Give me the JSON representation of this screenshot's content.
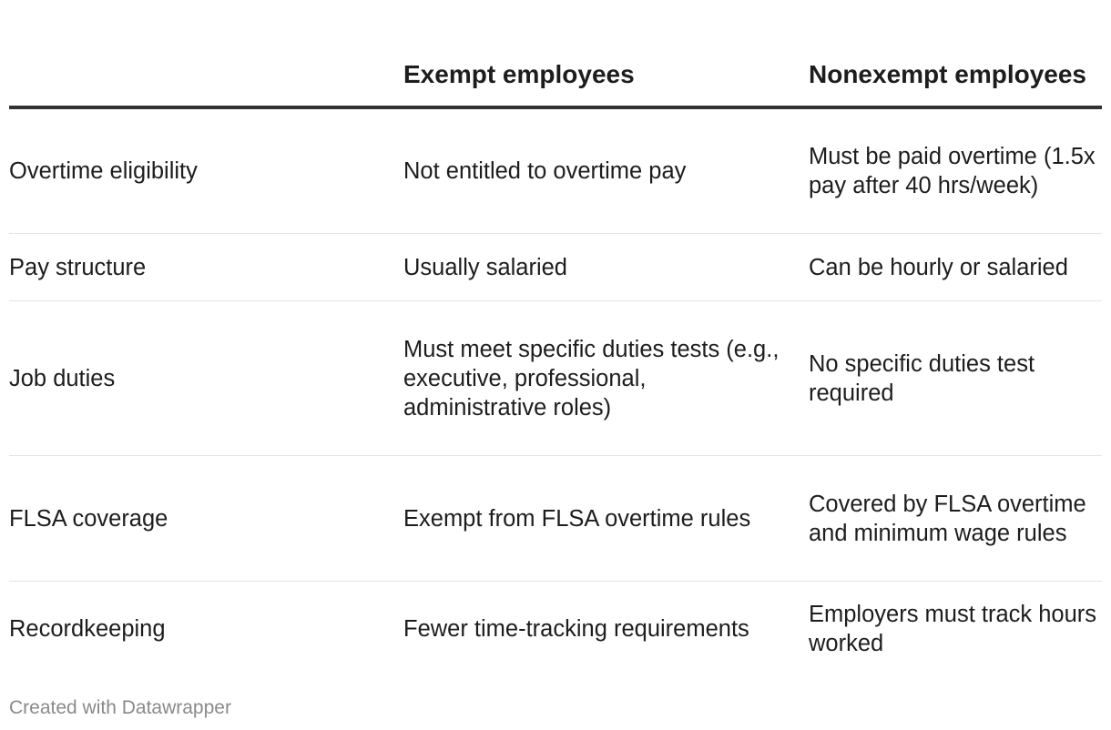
{
  "table": {
    "headers": [
      "",
      "Exempt employees",
      "Nonexempt employees"
    ],
    "rows": [
      [
        "Overtime eligibility",
        "Not entitled to overtime pay",
        "Must be paid overtime (1.5x pay after 40 hrs/week)"
      ],
      [
        "Pay structure",
        "Usually salaried",
        "Can be hourly or salaried"
      ],
      [
        "Job duties",
        "Must meet specific duties tests (e.g., executive, professional, administrative roles)",
        "No specific duties test required"
      ],
      [
        "FLSA coverage",
        "Exempt from FLSA overtime rules",
        "Covered by FLSA overtime and minimum wage rules"
      ],
      [
        "Recordkeeping",
        "Fewer time-tracking requirements",
        "Employers must track hours worked"
      ]
    ]
  },
  "chart_data": {
    "type": "table",
    "columns": [
      "",
      "Exempt employees",
      "Nonexempt employees"
    ],
    "rows": [
      [
        "Overtime eligibility",
        "Not entitled to overtime pay",
        "Must be paid overtime (1.5x pay after 40 hrs/week)"
      ],
      [
        "Pay structure",
        "Usually salaried",
        "Can be hourly or salaried"
      ],
      [
        "Job duties",
        "Must meet specific duties tests (e.g., executive, professional, administrative roles)",
        "No specific duties test required"
      ],
      [
        "FLSA coverage",
        "Exempt from FLSA overtime rules",
        "Covered by FLSA overtime and minimum wage rules"
      ],
      [
        "Recordkeeping",
        "Fewer time-tracking requirements",
        "Employers must track hours worked"
      ]
    ]
  },
  "footer": {
    "credit": "Created with Datawrapper"
  }
}
